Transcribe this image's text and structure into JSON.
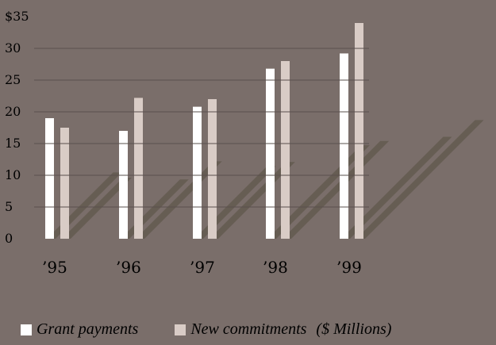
{
  "chart_data": {
    "type": "bar",
    "categories": [
      "’95",
      "’96",
      "’97",
      "’98",
      "’99"
    ],
    "series": [
      {
        "name": "Grant payments",
        "values": [
          19.0,
          17.0,
          20.8,
          26.8,
          29.2
        ],
        "color": "#ffffff"
      },
      {
        "name": "New commitments",
        "values": [
          17.5,
          22.2,
          22.0,
          28.0,
          34.0
        ],
        "color": "#d9ccc6"
      }
    ],
    "legend_suffix": "($ Millions)",
    "ytick_labels": [
      "0",
      "5",
      "10",
      "15",
      "20",
      "25",
      "30",
      "$35"
    ],
    "ylim": [
      0,
      35
    ],
    "grid": true,
    "legend": "bottom",
    "colors": {
      "background": "#7a6e6a",
      "gridline": "#5a504d",
      "shadow": "#635a4f"
    }
  }
}
